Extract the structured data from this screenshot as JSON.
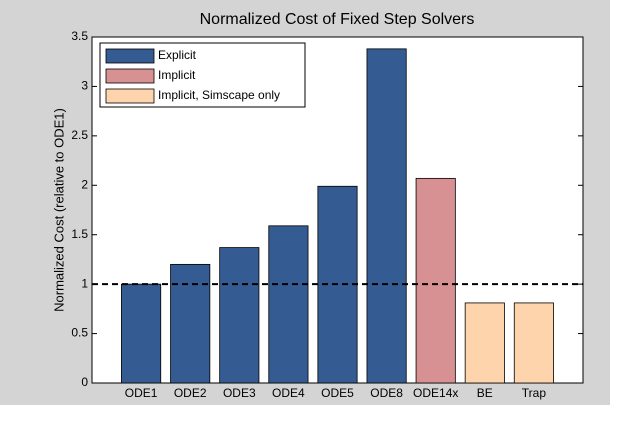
{
  "chart_data": {
    "type": "bar",
    "title": "Normalized Cost of Fixed Step Solvers",
    "y_label": "Normalized Cost (relative to ODE1)",
    "categories": [
      "ODE1",
      "ODE2",
      "ODE3",
      "ODE4",
      "ODE5",
      "ODE8",
      "ODE14x",
      "BE",
      "Trap"
    ],
    "series": [
      {
        "name": "Explicit",
        "color": "#355c92",
        "values": [
          1,
          1.2,
          1.37,
          1.59,
          1.99,
          3.38,
          null,
          null,
          null
        ]
      },
      {
        "name": "Implicit",
        "color": "#d89192",
        "values": [
          null,
          null,
          null,
          null,
          null,
          null,
          2.07,
          null,
          null
        ]
      },
      {
        "name": "Implicit, Simscape only",
        "color": "#fdd4ac",
        "values": [
          null,
          null,
          null,
          null,
          null,
          null,
          null,
          0.81,
          0.81
        ]
      }
    ],
    "hline": 1,
    "ylim": [
      0,
      3.5
    ],
    "yticks": [
      0,
      0.5,
      1,
      1.5,
      2,
      2.5,
      3,
      3.5
    ],
    "legend": "upper left"
  }
}
